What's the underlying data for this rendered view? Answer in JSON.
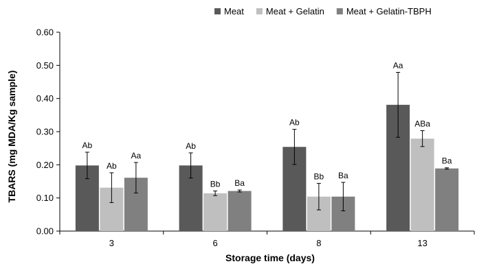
{
  "chart_data": {
    "type": "bar",
    "title": "",
    "xlabel": "Storage time (days)",
    "ylabel": "TBARS (mg MDA/Kg sample)",
    "ylim": [
      0,
      0.6
    ],
    "yticks": [
      "0.00",
      "0.10",
      "0.20",
      "0.30",
      "0.40",
      "0.50",
      "0.60"
    ],
    "grid": false,
    "legend_position": "top-right",
    "categories": [
      "3",
      "6",
      "8",
      "13"
    ],
    "series": [
      {
        "name": "Meat",
        "color": "#595959",
        "values": [
          0.198,
          0.198,
          0.254,
          0.381
        ],
        "errors": [
          0.04,
          0.038,
          0.053,
          0.098
        ],
        "labels": [
          "Ab",
          "Ab",
          "Ab",
          "Aa"
        ]
      },
      {
        "name": "Meat + Gelatin",
        "color": "#bfbfbf",
        "values": [
          0.131,
          0.114,
          0.104,
          0.279
        ],
        "errors": [
          0.045,
          0.007,
          0.04,
          0.024
        ],
        "labels": [
          "Ab",
          "Bb",
          "Bb",
          "ABa"
        ]
      },
      {
        "name": "Meat + Gelatin-TBPH",
        "color": "#808080",
        "values": [
          0.161,
          0.121,
          0.104,
          0.189
        ],
        "errors": [
          0.046,
          0.003,
          0.043,
          0.002
        ],
        "labels": [
          "Aa",
          "Ba",
          "Ba",
          "Ba"
        ]
      }
    ]
  }
}
